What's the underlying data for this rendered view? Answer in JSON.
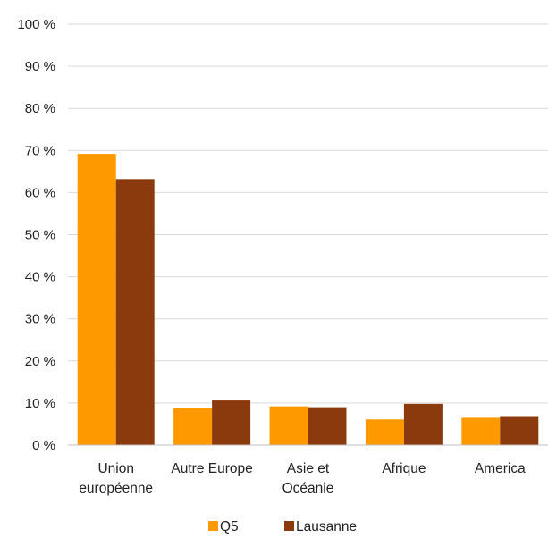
{
  "chart_data": {
    "type": "bar",
    "categories": [
      [
        "Union",
        "européenne"
      ],
      [
        "Autre Europe"
      ],
      [
        "Asie et",
        "Océanie"
      ],
      [
        "Afrique"
      ],
      [
        "America"
      ]
    ],
    "series": [
      {
        "name": "Q5",
        "color": "#ff9900",
        "values": [
          69.2,
          8.8,
          9.2,
          6.1,
          6.5
        ]
      },
      {
        "name": "Lausanne",
        "color": "#8b3a0e",
        "values": [
          63.2,
          10.6,
          9.0,
          9.8,
          6.9
        ]
      }
    ],
    "yticks": [
      "0 %",
      "10 %",
      "20 %",
      "30 %",
      "40 %",
      "50 %",
      "60 %",
      "70 %",
      "80 %",
      "90 %",
      "100 %"
    ],
    "ylim": [
      0,
      100
    ],
    "grid": true,
    "legend_position": "bottom"
  }
}
